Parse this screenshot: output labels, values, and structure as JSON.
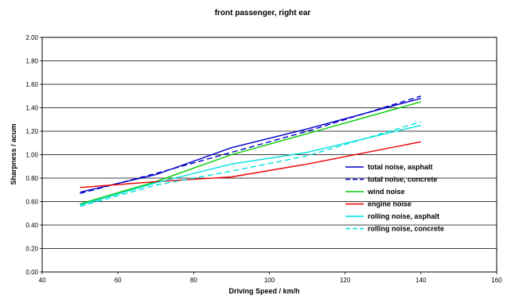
{
  "chart_data": {
    "type": "line",
    "title": "front passenger, right ear",
    "xlabel": "Driving Speed / km/h",
    "ylabel": "Sharpness / acum",
    "xlim": [
      40,
      160
    ],
    "ylim": [
      0,
      2
    ],
    "xticks": [
      "40",
      "60",
      "80",
      "100",
      "120",
      "140",
      "160"
    ],
    "yticks": [
      "0.00",
      "0.20",
      "0.40",
      "0.60",
      "0.80",
      "1.00",
      "1.20",
      "1.40",
      "1.60",
      "1.80",
      "2.00"
    ],
    "grid": "horizontal",
    "legend": "lower-right",
    "x": [
      50,
      70,
      90,
      110,
      140
    ],
    "series": [
      {
        "name": "total noise, asphalt",
        "values": [
          0.68,
          0.83,
          1.06,
          1.22,
          1.48
        ],
        "color": "#0000cc",
        "dash": "solid"
      },
      {
        "name": "total noise, concrete",
        "values": [
          0.67,
          0.84,
          1.02,
          1.2,
          1.5
        ],
        "color": "#0000cc",
        "dash": "dashed"
      },
      {
        "name": "wind noise",
        "values": [
          0.58,
          0.77,
          1.0,
          1.18,
          1.45
        ],
        "color": "#00cc00",
        "dash": "solid"
      },
      {
        "name": "engine noise",
        "values": [
          0.72,
          0.77,
          0.81,
          0.92,
          1.11
        ],
        "color": "#ee0000",
        "dash": "solid"
      },
      {
        "name": "rolling noise, asphalt",
        "values": [
          0.57,
          0.76,
          0.92,
          1.02,
          1.25
        ],
        "color": "#00e0e0",
        "dash": "solid"
      },
      {
        "name": "rolling noise, concrete",
        "values": [
          0.56,
          0.74,
          0.86,
          0.99,
          1.28
        ],
        "color": "#00e0e0",
        "dash": "dashed"
      }
    ]
  }
}
